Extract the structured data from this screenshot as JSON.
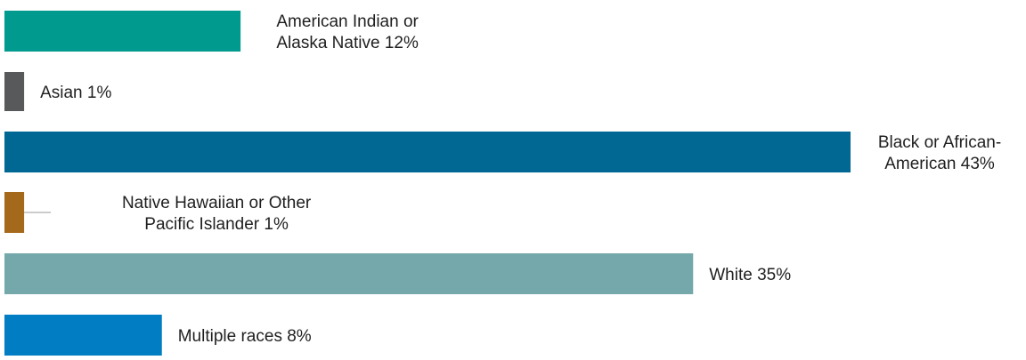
{
  "chart_data": {
    "type": "bar",
    "orientation": "horizontal",
    "title": "",
    "xlabel": "",
    "ylabel": "",
    "xlim": [
      0,
      43
    ],
    "grid": false,
    "legend": "none",
    "categories": [
      "American Indian or Alaska Native",
      "Asian",
      "Black or African-American",
      "Native Hawaiian or Other Pacific Islander",
      "White",
      "Multiple races"
    ],
    "values": [
      12,
      1,
      43,
      1,
      35,
      8
    ],
    "labels": [
      [
        "American Indian or",
        "Alaska Native 12%"
      ],
      [
        "Asian 1%"
      ],
      [
        "Black or African-",
        "American 43%"
      ],
      [
        "Native Hawaiian or Other",
        "Pacific Islander 1%"
      ],
      [
        "White 35%"
      ],
      [
        "Multiple races 8%"
      ]
    ],
    "colors": [
      "#009A8E",
      "#58595B",
      "#006892",
      "#A5691B",
      "#74A8AB",
      "#007DC3"
    ]
  }
}
